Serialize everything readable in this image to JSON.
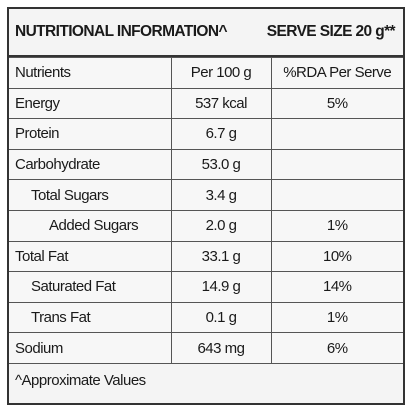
{
  "header": {
    "title": "NUTRITIONAL INFORMATION^",
    "serve_size": "SERVE SIZE 20 g**"
  },
  "table": {
    "columns": [
      "Nutrients",
      "Per 100 g",
      "%RDA Per Serve"
    ],
    "rows": [
      {
        "name": "Energy",
        "per_100g": "537 kcal",
        "rda": "5%"
      },
      {
        "name": "Protein",
        "per_100g": "6.7 g"
      },
      {
        "name": "Carbohydrate",
        "per_100g": "53.0 g"
      },
      {
        "name": "Total Sugars",
        "per_100g": "3.4 g"
      },
      {
        "name": "Added Sugars",
        "per_100g": "2.0 g",
        "rda": "1%"
      },
      {
        "name": "Total Fat",
        "per_100g": "33.1 g",
        "rda": "10%"
      },
      {
        "name": "Saturated Fat",
        "per_100g": "14.9 g",
        "rda": "14%"
      },
      {
        "name": "Trans Fat",
        "per_100g": "0.1 g",
        "rda": "1%"
      },
      {
        "name": "Sodium",
        "per_100g": "643 mg",
        "rda": "6%"
      }
    ]
  },
  "footer": "^Approximate Values"
}
